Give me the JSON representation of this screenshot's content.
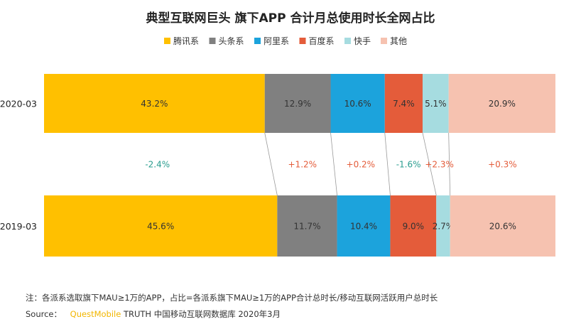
{
  "chart_data": {
    "type": "bar",
    "title": "典型互联网巨头 旗下APP 合计月总使用时长全网占比",
    "categories": [
      "2020-03",
      "2019-03"
    ],
    "series": [
      {
        "name": "腾讯系",
        "values": [
          43.2,
          45.6
        ],
        "color": "#FFC000"
      },
      {
        "name": "头条系",
        "values": [
          12.9,
          11.7
        ],
        "color": "#808080"
      },
      {
        "name": "阿里系",
        "values": [
          10.6,
          10.4
        ],
        "color": "#1CA3DC"
      },
      {
        "name": "百度系",
        "values": [
          7.4,
          9.0
        ],
        "color": "#E45C3A"
      },
      {
        "name": "快手",
        "values": [
          5.1,
          2.7
        ],
        "color": "#A6DCE0"
      },
      {
        "name": "其他",
        "values": [
          20.9,
          20.6
        ],
        "color": "#F6C2B0"
      }
    ],
    "labels": {
      "2020-03": [
        "43.2%",
        "12.9%",
        "10.6%",
        "7.4%",
        "5.1%",
        "20.9%"
      ],
      "2019-03": [
        "45.6%",
        "11.7%",
        "10.4%",
        "9.0%",
        "2.7%",
        "20.6%"
      ]
    },
    "changes": [
      "-2.4%",
      "+1.2%",
      "+0.2%",
      "-1.6%",
      "+2.3%",
      "+0.3%"
    ],
    "change_colors": {
      "negative": "#2A9D8F",
      "positive": "#E45C3A"
    },
    "stacked": true,
    "percent": true,
    "legend_position": "top-center",
    "xlim": [
      0,
      100
    ],
    "grid": false
  },
  "footer": {
    "note": "注：各派系选取旗下MAU≥1万的APP，占比=各派系旗下MAU≥1万的APP合计总时长/移动互联网活跃用户总时长",
    "source_label": "Source：",
    "source_brand": "QuestMobile",
    "source_rest": " TRUTH 中国移动互联网数据库 2020年3月"
  }
}
